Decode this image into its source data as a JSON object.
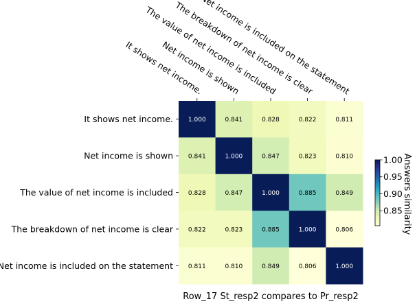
{
  "chart_data": {
    "type": "heatmap",
    "title": "",
    "xlabel": "Row_17 St_resp2 compares to Pr_resp2",
    "ylabel": "",
    "x_tick_position": "top",
    "grid": false,
    "labels": [
      "It shows net income.",
      "Net income is shown",
      "The value of net income is included",
      "The breakdown of net income is clear",
      "Net income is included on the statement"
    ],
    "matrix": [
      [
        1.0,
        0.841,
        0.828,
        0.822,
        0.811
      ],
      [
        0.841,
        1.0,
        0.847,
        0.823,
        0.81
      ],
      [
        0.828,
        0.847,
        1.0,
        0.885,
        0.849
      ],
      [
        0.822,
        0.823,
        0.885,
        1.0,
        0.806
      ],
      [
        0.811,
        0.81,
        0.849,
        0.806,
        1.0
      ]
    ],
    "value_format": "0.000",
    "colormap": "YlGnBu",
    "colorbar": {
      "label": "Answers similarity",
      "min": 0.806,
      "max": 1.0,
      "ticks": [
        "0.85",
        "0.90",
        "0.95",
        "1.00"
      ],
      "tick_values": [
        0.85,
        0.9,
        0.95,
        1.0
      ]
    },
    "colors": {
      "stops": [
        "#ffffd9",
        "#edf8b1",
        "#c7e9b4",
        "#7fcdbb",
        "#41b6c4",
        "#1d91c0",
        "#225ea8",
        "#253494",
        "#081d58"
      ],
      "text_dark": "#000000",
      "text_light": "#ffffff"
    }
  }
}
